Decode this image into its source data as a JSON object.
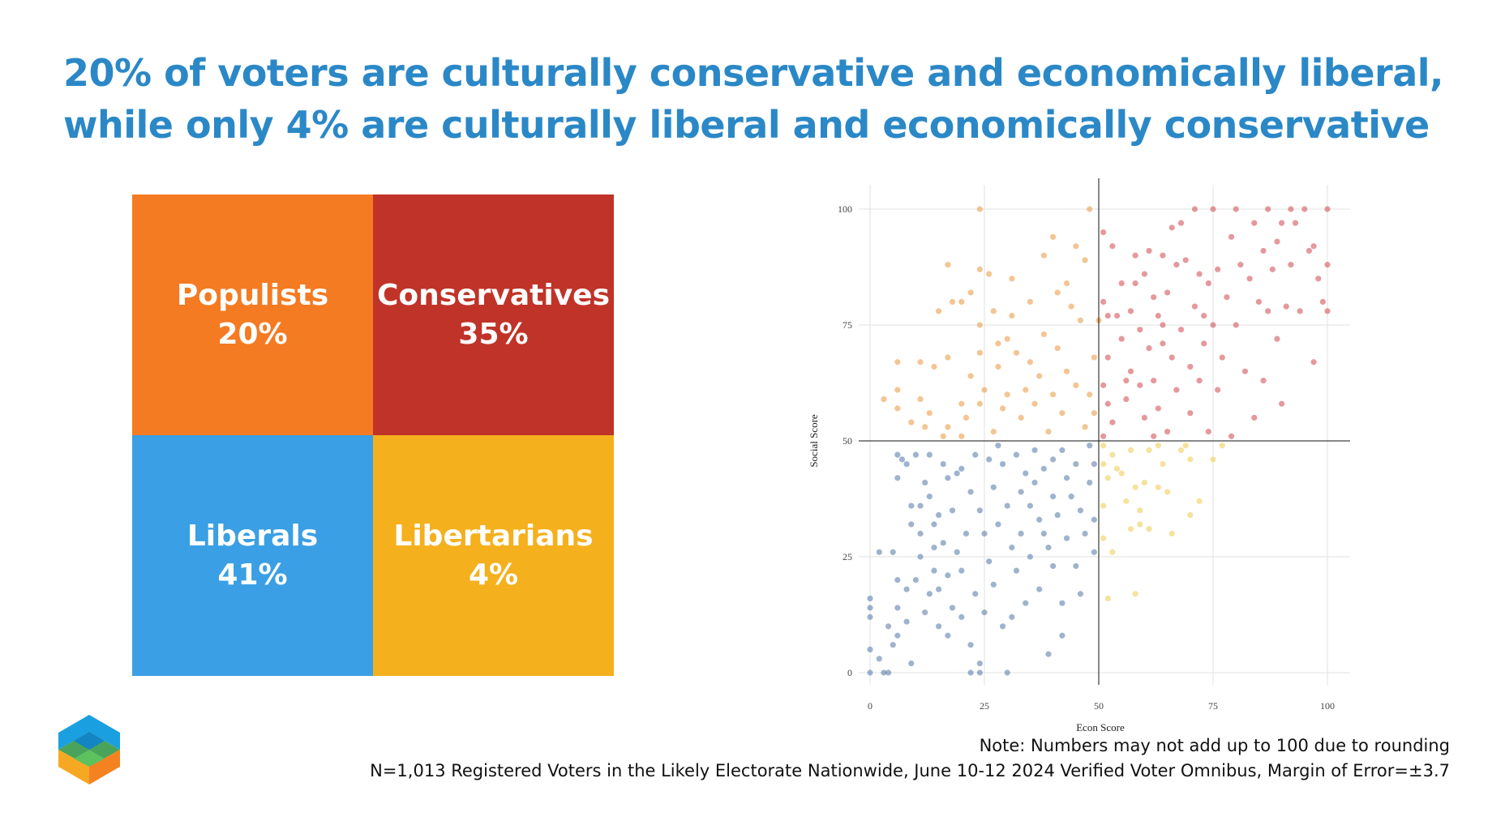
{
  "title": {
    "line1": "20% of voters are culturally conservative and economically liberal,",
    "line2": "while only 4% are culturally liberal and economically conservative"
  },
  "treemap": [
    {
      "name": "Populists",
      "pct": "20%",
      "color": "#f47b22"
    },
    {
      "name": "Conservatives",
      "pct": "35%",
      "color": "#c03328"
    },
    {
      "name": "Liberals",
      "pct": "41%",
      "color": "#3a9fe4"
    },
    {
      "name": "Libertarians",
      "pct": "4%",
      "color": "#f4b01d"
    }
  ],
  "chart_data": {
    "type": "scatter",
    "xlabel": "Econ Score",
    "ylabel": "Social Score",
    "xlim": [
      0,
      100
    ],
    "ylim": [
      0,
      100
    ],
    "xticks": [
      0,
      25,
      50,
      75,
      100
    ],
    "yticks": [
      0,
      25,
      50,
      75,
      100
    ],
    "grid": true,
    "reference_lines": {
      "x": 50,
      "y": 50
    },
    "series": [
      {
        "name": "Liberals",
        "color": "#5f80ab",
        "points": [
          [
            0,
            16
          ],
          [
            0,
            14
          ],
          [
            0,
            12
          ],
          [
            0,
            5
          ],
          [
            0,
            0
          ],
          [
            3,
            0
          ],
          [
            4,
            0
          ],
          [
            2,
            3
          ],
          [
            4,
            10
          ],
          [
            5,
            6
          ],
          [
            6,
            20
          ],
          [
            6,
            14
          ],
          [
            6,
            8
          ],
          [
            6,
            47
          ],
          [
            7,
            46
          ],
          [
            8,
            45
          ],
          [
            6,
            42
          ],
          [
            8,
            11
          ],
          [
            8,
            18
          ],
          [
            9,
            36
          ],
          [
            9,
            32
          ],
          [
            9,
            2
          ],
          [
            10,
            20
          ],
          [
            10,
            47
          ],
          [
            11,
            30
          ],
          [
            11,
            25
          ],
          [
            11,
            36
          ],
          [
            12,
            41
          ],
          [
            12,
            13
          ],
          [
            13,
            17
          ],
          [
            13,
            38
          ],
          [
            13,
            47
          ],
          [
            14,
            32
          ],
          [
            14,
            27
          ],
          [
            14,
            22
          ],
          [
            15,
            34
          ],
          [
            15,
            18
          ],
          [
            15,
            10
          ],
          [
            16,
            45
          ],
          [
            16,
            28
          ],
          [
            17,
            21
          ],
          [
            17,
            8
          ],
          [
            17,
            42
          ],
          [
            18,
            35
          ],
          [
            18,
            14
          ],
          [
            19,
            26
          ],
          [
            19,
            43
          ],
          [
            20,
            22
          ],
          [
            20,
            44
          ],
          [
            20,
            12
          ],
          [
            21,
            30
          ],
          [
            22,
            6
          ],
          [
            22,
            39
          ],
          [
            23,
            47
          ],
          [
            23,
            17
          ],
          [
            24,
            35
          ],
          [
            24,
            2
          ],
          [
            25,
            30
          ],
          [
            25,
            13
          ],
          [
            26,
            24
          ],
          [
            26,
            46
          ],
          [
            27,
            40
          ],
          [
            27,
            19
          ],
          [
            28,
            32
          ],
          [
            28,
            49
          ],
          [
            29,
            10
          ],
          [
            29,
            45
          ],
          [
            30,
            36
          ],
          [
            30,
            0
          ],
          [
            31,
            27
          ],
          [
            31,
            12
          ],
          [
            32,
            47
          ],
          [
            32,
            22
          ],
          [
            33,
            39
          ],
          [
            33,
            30
          ],
          [
            34,
            43
          ],
          [
            34,
            15
          ],
          [
            35,
            36
          ],
          [
            35,
            25
          ],
          [
            36,
            48
          ],
          [
            36,
            41
          ],
          [
            37,
            33
          ],
          [
            37,
            18
          ],
          [
            38,
            44
          ],
          [
            38,
            30
          ],
          [
            39,
            27
          ],
          [
            39,
            4
          ],
          [
            40,
            46
          ],
          [
            40,
            38
          ],
          [
            40,
            23
          ],
          [
            41,
            34
          ],
          [
            42,
            48
          ],
          [
            42,
            15
          ],
          [
            42,
            8
          ],
          [
            43,
            42
          ],
          [
            43,
            29
          ],
          [
            44,
            38
          ],
          [
            45,
            45
          ],
          [
            45,
            23
          ],
          [
            46,
            35
          ],
          [
            46,
            17
          ],
          [
            47,
            30
          ],
          [
            48,
            49
          ],
          [
            48,
            41
          ],
          [
            49,
            33
          ],
          [
            49,
            26
          ],
          [
            49,
            45
          ],
          [
            5,
            26
          ],
          [
            2,
            26
          ],
          [
            24,
            0
          ],
          [
            22,
            0
          ]
        ]
      },
      {
        "name": "Conservatives",
        "color": "#d4555c",
        "points": [
          [
            51,
            95
          ],
          [
            51,
            80
          ],
          [
            51,
            62
          ],
          [
            51,
            51
          ],
          [
            52,
            77
          ],
          [
            52,
            68
          ],
          [
            52,
            58
          ],
          [
            53,
            92
          ],
          [
            53,
            54
          ],
          [
            54,
            77
          ],
          [
            55,
            84
          ],
          [
            55,
            72
          ],
          [
            56,
            59
          ],
          [
            57,
            78
          ],
          [
            57,
            65
          ],
          [
            58,
            84
          ],
          [
            58,
            90
          ],
          [
            59,
            74
          ],
          [
            59,
            62
          ],
          [
            60,
            86
          ],
          [
            60,
            55
          ],
          [
            61,
            91
          ],
          [
            61,
            70
          ],
          [
            62,
            81
          ],
          [
            62,
            63
          ],
          [
            63,
            77
          ],
          [
            63,
            57
          ],
          [
            64,
            90
          ],
          [
            64,
            71
          ],
          [
            65,
            82
          ],
          [
            65,
            52
          ],
          [
            66,
            96
          ],
          [
            66,
            68
          ],
          [
            67,
            61
          ],
          [
            67,
            88
          ],
          [
            68,
            74
          ],
          [
            68,
            97
          ],
          [
            69,
            89
          ],
          [
            70,
            66
          ],
          [
            70,
            56
          ],
          [
            71,
            100
          ],
          [
            71,
            79
          ],
          [
            72,
            86
          ],
          [
            72,
            63
          ],
          [
            73,
            71
          ],
          [
            73,
            77
          ],
          [
            74,
            52
          ],
          [
            74,
            84
          ],
          [
            75,
            100
          ],
          [
            75,
            75
          ],
          [
            76,
            87
          ],
          [
            76,
            61
          ],
          [
            77,
            68
          ],
          [
            78,
            81
          ],
          [
            79,
            94
          ],
          [
            79,
            51
          ],
          [
            80,
            100
          ],
          [
            80,
            75
          ],
          [
            81,
            88
          ],
          [
            82,
            65
          ],
          [
            83,
            85
          ],
          [
            84,
            97
          ],
          [
            84,
            55
          ],
          [
            85,
            80
          ],
          [
            86,
            91
          ],
          [
            86,
            63
          ],
          [
            87,
            100
          ],
          [
            87,
            78
          ],
          [
            88,
            87
          ],
          [
            89,
            93
          ],
          [
            89,
            72
          ],
          [
            90,
            97
          ],
          [
            90,
            58
          ],
          [
            91,
            79
          ],
          [
            92,
            100
          ],
          [
            92,
            88
          ],
          [
            93,
            97
          ],
          [
            94,
            78
          ],
          [
            95,
            100
          ],
          [
            96,
            91
          ],
          [
            97,
            92
          ],
          [
            97,
            67
          ],
          [
            98,
            85
          ],
          [
            99,
            80
          ],
          [
            100,
            100
          ],
          [
            100,
            88
          ],
          [
            100,
            78
          ],
          [
            56,
            63
          ],
          [
            62,
            51
          ],
          [
            64,
            75
          ]
        ]
      },
      {
        "name": "Populists",
        "color": "#eb9e4c",
        "points": [
          [
            3,
            59
          ],
          [
            6,
            67
          ],
          [
            6,
            61
          ],
          [
            6,
            57
          ],
          [
            9,
            54
          ],
          [
            11,
            67
          ],
          [
            11,
            59
          ],
          [
            12,
            53
          ],
          [
            13,
            56
          ],
          [
            14,
            66
          ],
          [
            15,
            78
          ],
          [
            16,
            51
          ],
          [
            17,
            88
          ],
          [
            17,
            68
          ],
          [
            17,
            53
          ],
          [
            18,
            80
          ],
          [
            20,
            58
          ],
          [
            20,
            51
          ],
          [
            20,
            80
          ],
          [
            21,
            55
          ],
          [
            22,
            82
          ],
          [
            22,
            64
          ],
          [
            24,
            100
          ],
          [
            24,
            87
          ],
          [
            24,
            75
          ],
          [
            24,
            69
          ],
          [
            24,
            58
          ],
          [
            25,
            61
          ],
          [
            26,
            86
          ],
          [
            27,
            78
          ],
          [
            27,
            52
          ],
          [
            28,
            71
          ],
          [
            28,
            66
          ],
          [
            29,
            57
          ],
          [
            30,
            72
          ],
          [
            30,
            60
          ],
          [
            31,
            77
          ],
          [
            31,
            85
          ],
          [
            32,
            69
          ],
          [
            33,
            55
          ],
          [
            34,
            61
          ],
          [
            35,
            67
          ],
          [
            35,
            80
          ],
          [
            36,
            58
          ],
          [
            37,
            64
          ],
          [
            38,
            90
          ],
          [
            38,
            73
          ],
          [
            39,
            52
          ],
          [
            40,
            94
          ],
          [
            40,
            60
          ],
          [
            41,
            82
          ],
          [
            41,
            70
          ],
          [
            42,
            56
          ],
          [
            43,
            84
          ],
          [
            43,
            65
          ],
          [
            44,
            79
          ],
          [
            45,
            92
          ],
          [
            45,
            62
          ],
          [
            46,
            76
          ],
          [
            47,
            89
          ],
          [
            47,
            53
          ],
          [
            48,
            100
          ],
          [
            48,
            60
          ],
          [
            49,
            68
          ],
          [
            49,
            56
          ],
          [
            50,
            76
          ]
        ]
      },
      {
        "name": "Libertarians",
        "color": "#efcf5a",
        "points": [
          [
            51,
            49
          ],
          [
            51,
            45
          ],
          [
            51,
            36
          ],
          [
            51,
            29
          ],
          [
            52,
            42
          ],
          [
            52,
            16
          ],
          [
            53,
            47
          ],
          [
            53,
            26
          ],
          [
            54,
            44
          ],
          [
            55,
            43
          ],
          [
            56,
            37
          ],
          [
            57,
            48
          ],
          [
            57,
            31
          ],
          [
            58,
            40
          ],
          [
            58,
            17
          ],
          [
            59,
            35
          ],
          [
            59,
            32
          ],
          [
            60,
            41
          ],
          [
            61,
            48
          ],
          [
            61,
            31
          ],
          [
            63,
            49
          ],
          [
            63,
            40
          ],
          [
            64,
            45
          ],
          [
            65,
            39
          ],
          [
            66,
            30
          ],
          [
            68,
            48
          ],
          [
            69,
            49
          ],
          [
            70,
            34
          ],
          [
            70,
            46
          ],
          [
            72,
            37
          ],
          [
            75,
            46
          ],
          [
            77,
            49
          ]
        ]
      }
    ]
  },
  "footer": {
    "note": "Note: Numbers may not add up to 100 due to rounding",
    "source": "N=1,013 Registered Voters in the Likely Electorate Nationwide, June 10-12 2024 Verified Voter Omnibus, Margin of Error=±3.7"
  }
}
